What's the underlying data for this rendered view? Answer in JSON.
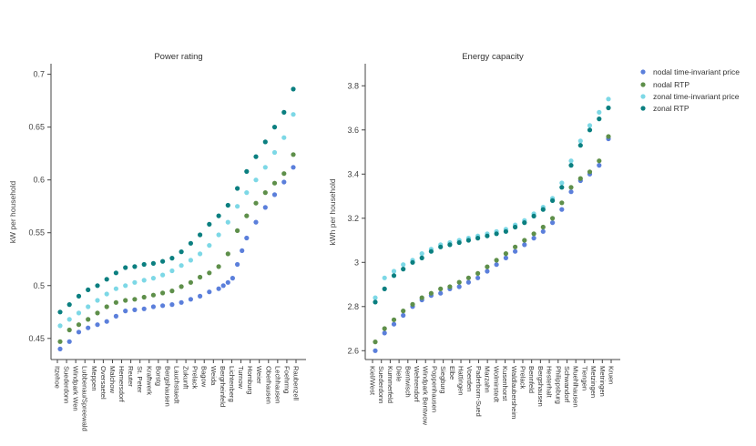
{
  "legend": {
    "items": [
      {
        "label": "nodal time-invariant price",
        "color": "#5b7fdb"
      },
      {
        "label": "nodal RTP",
        "color": "#5e8f4a"
      },
      {
        "label": "zonal time-invariant price",
        "color": "#7dd8e6"
      },
      {
        "label": "zonal RTP",
        "color": "#0b7f80"
      }
    ]
  },
  "chart_data": [
    {
      "type": "scatter",
      "title": "Power rating",
      "xlabel": "",
      "ylabel": "kW per household",
      "ylim": [
        0.43,
        0.71
      ],
      "yticks": [
        0.45,
        0.5,
        0.55,
        0.6,
        0.65,
        0.7
      ],
      "ytick_labels": [
        "0.45",
        "0.5",
        "0.55",
        "0.6",
        "0.65",
        "0.7"
      ],
      "x_tick_labels": [
        "Itzehoe",
        "Suederdonn",
        "Windpark Wen",
        "Lubbenau/Spreewald",
        "Meppen",
        "Oversaetel",
        "Malchow",
        "Hemersdorf",
        "Reuter",
        "St. Peter",
        "Kraftwerk",
        "Borstg",
        "Bergshausen",
        "Lauchstaedt",
        "Zukunft",
        "Prelack",
        "Bagow",
        "Weida",
        "Bergrheinfeld",
        "Lichtenberg",
        "Turnow",
        "Homburg",
        "Weier",
        "Oberhausen",
        "Lechhausen",
        "Foehrmg",
        "Raubenzell"
      ],
      "series": [
        {
          "name": "nodal time-invariant price",
          "color": "#5b7fdb",
          "x": [
            0.0,
            0.04,
            0.08,
            0.12,
            0.16,
            0.2,
            0.24,
            0.28,
            0.32,
            0.36,
            0.4,
            0.44,
            0.48,
            0.52,
            0.56,
            0.6,
            0.64,
            0.68,
            0.7,
            0.72,
            0.74,
            0.76,
            0.78,
            0.8,
            0.84,
            0.88,
            0.92,
            0.96,
            1.0
          ],
          "y": [
            0.44,
            0.447,
            0.456,
            0.46,
            0.463,
            0.466,
            0.471,
            0.476,
            0.477,
            0.478,
            0.48,
            0.481,
            0.482,
            0.484,
            0.487,
            0.49,
            0.494,
            0.497,
            0.5,
            0.503,
            0.507,
            0.52,
            0.533,
            0.545,
            0.56,
            0.574,
            0.586,
            0.598,
            0.612
          ]
        },
        {
          "name": "nodal RTP",
          "color": "#5e8f4a",
          "x": [
            0.0,
            0.04,
            0.08,
            0.12,
            0.16,
            0.2,
            0.24,
            0.28,
            0.32,
            0.36,
            0.4,
            0.44,
            0.48,
            0.52,
            0.56,
            0.6,
            0.64,
            0.68,
            0.72,
            0.76,
            0.8,
            0.84,
            0.88,
            0.92,
            0.96,
            1.0
          ],
          "y": [
            0.447,
            0.458,
            0.463,
            0.468,
            0.474,
            0.48,
            0.484,
            0.486,
            0.487,
            0.489,
            0.491,
            0.493,
            0.495,
            0.499,
            0.503,
            0.508,
            0.512,
            0.518,
            0.53,
            0.552,
            0.566,
            0.578,
            0.588,
            0.597,
            0.606,
            0.624
          ]
        },
        {
          "name": "zonal time-invariant price",
          "color": "#7dd8e6",
          "x": [
            0.0,
            0.04,
            0.08,
            0.12,
            0.16,
            0.2,
            0.24,
            0.28,
            0.32,
            0.36,
            0.4,
            0.44,
            0.48,
            0.52,
            0.56,
            0.6,
            0.64,
            0.68,
            0.72,
            0.76,
            0.8,
            0.84,
            0.88,
            0.92,
            0.96,
            1.0
          ],
          "y": [
            0.462,
            0.468,
            0.474,
            0.48,
            0.486,
            0.492,
            0.497,
            0.5,
            0.503,
            0.505,
            0.507,
            0.51,
            0.514,
            0.519,
            0.524,
            0.53,
            0.538,
            0.548,
            0.56,
            0.575,
            0.588,
            0.6,
            0.612,
            0.626,
            0.64,
            0.662
          ]
        },
        {
          "name": "zonal RTP",
          "color": "#0b7f80",
          "x": [
            0.0,
            0.04,
            0.08,
            0.12,
            0.16,
            0.2,
            0.24,
            0.28,
            0.32,
            0.36,
            0.4,
            0.44,
            0.48,
            0.52,
            0.56,
            0.6,
            0.64,
            0.68,
            0.72,
            0.76,
            0.8,
            0.84,
            0.88,
            0.92,
            0.96,
            1.0
          ],
          "y": [
            0.475,
            0.482,
            0.49,
            0.496,
            0.5,
            0.506,
            0.512,
            0.517,
            0.518,
            0.52,
            0.521,
            0.523,
            0.526,
            0.532,
            0.54,
            0.548,
            0.558,
            0.566,
            0.576,
            0.592,
            0.608,
            0.622,
            0.636,
            0.65,
            0.664,
            0.686
          ]
        }
      ]
    },
    {
      "type": "scatter",
      "title": "Energy capacity",
      "xlabel": "",
      "ylabel": "kWh per household",
      "ylim": [
        2.56,
        3.9
      ],
      "yticks": [
        2.6,
        2.8,
        3.0,
        3.2,
        3.4,
        3.6,
        3.8
      ],
      "ytick_labels": [
        "2.6",
        "2.8",
        "3",
        "3.2",
        "3.4",
        "3.6",
        "3.8"
      ],
      "x_tick_labels": [
        "Kiel/West",
        "Suederdonn",
        "Kummerfeld",
        "Diele",
        "Bentwisch",
        "Wehrendorf",
        "Windpark Bentwow",
        "Poppenhausen",
        "Siegburg",
        "Elbe",
        "Hattingen",
        "Voerden",
        "Paderborn-Sued",
        "Marzahn",
        "Wolmirstedt",
        "Kusenhorst",
        "Waldlaubersheim",
        "Prelack",
        "Bennfeld",
        "Bergshausen",
        "Hesterhalt",
        "Philippsburg",
        "Schwandorf",
        "Muehlhausen",
        "Tiengen",
        "Metzingen",
        "Metringen",
        "Kruen"
      ],
      "series": [
        {
          "name": "nodal time-invariant price",
          "color": "#5b7fdb",
          "x": [
            0.0,
            0.04,
            0.08,
            0.12,
            0.16,
            0.2,
            0.24,
            0.28,
            0.32,
            0.36,
            0.4,
            0.44,
            0.48,
            0.52,
            0.56,
            0.6,
            0.64,
            0.68,
            0.72,
            0.76,
            0.8,
            0.84,
            0.88,
            0.92,
            0.96,
            1.0
          ],
          "y": [
            2.6,
            2.68,
            2.72,
            2.76,
            2.8,
            2.83,
            2.85,
            2.86,
            2.88,
            2.89,
            2.91,
            2.93,
            2.96,
            2.99,
            3.02,
            3.05,
            3.08,
            3.11,
            3.14,
            3.18,
            3.24,
            3.32,
            3.37,
            3.4,
            3.44,
            3.56
          ]
        },
        {
          "name": "nodal RTP",
          "color": "#5e8f4a",
          "x": [
            0.0,
            0.04,
            0.08,
            0.12,
            0.16,
            0.2,
            0.24,
            0.28,
            0.32,
            0.36,
            0.4,
            0.44,
            0.48,
            0.52,
            0.56,
            0.6,
            0.64,
            0.68,
            0.72,
            0.76,
            0.8,
            0.84,
            0.88,
            0.92,
            0.96,
            1.0
          ],
          "y": [
            2.64,
            2.7,
            2.74,
            2.78,
            2.81,
            2.84,
            2.86,
            2.88,
            2.89,
            2.91,
            2.93,
            2.95,
            2.98,
            3.01,
            3.04,
            3.07,
            3.1,
            3.13,
            3.16,
            3.2,
            3.27,
            3.34,
            3.38,
            3.41,
            3.46,
            3.57
          ]
        },
        {
          "name": "zonal time-invariant price",
          "color": "#7dd8e6",
          "x": [
            0.0,
            0.04,
            0.08,
            0.12,
            0.16,
            0.2,
            0.24,
            0.28,
            0.32,
            0.36,
            0.4,
            0.44,
            0.48,
            0.52,
            0.56,
            0.6,
            0.64,
            0.68,
            0.72,
            0.76,
            0.8,
            0.84,
            0.88,
            0.92,
            0.96,
            1.0
          ],
          "y": [
            2.84,
            2.93,
            2.96,
            2.99,
            3.01,
            3.04,
            3.06,
            3.08,
            3.09,
            3.1,
            3.11,
            3.12,
            3.13,
            3.14,
            3.15,
            3.17,
            3.19,
            3.22,
            3.25,
            3.29,
            3.36,
            3.46,
            3.55,
            3.62,
            3.68,
            3.74
          ]
        },
        {
          "name": "zonal RTP",
          "color": "#0b7f80",
          "x": [
            0.0,
            0.04,
            0.08,
            0.12,
            0.16,
            0.2,
            0.24,
            0.28,
            0.32,
            0.36,
            0.4,
            0.44,
            0.48,
            0.52,
            0.56,
            0.6,
            0.64,
            0.68,
            0.72,
            0.76,
            0.8,
            0.84,
            0.88,
            0.92,
            0.96,
            1.0
          ],
          "y": [
            2.82,
            2.88,
            2.94,
            2.97,
            3.0,
            3.02,
            3.05,
            3.07,
            3.08,
            3.09,
            3.1,
            3.11,
            3.12,
            3.13,
            3.14,
            3.16,
            3.18,
            3.21,
            3.24,
            3.28,
            3.34,
            3.44,
            3.53,
            3.6,
            3.65,
            3.7
          ]
        }
      ]
    }
  ]
}
